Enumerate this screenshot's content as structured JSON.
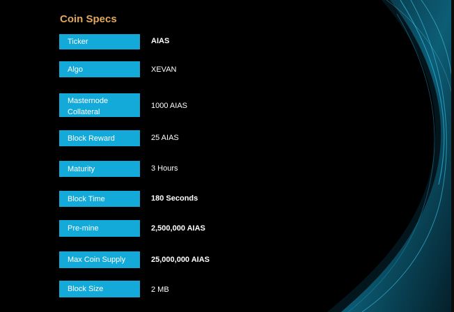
{
  "title": "Coin Specs",
  "specs": [
    {
      "label": "Ticker",
      "value": "AIAS"
    },
    {
      "label": "Algo",
      "value": "XEVAN"
    },
    {
      "label": "Masternode Collateral",
      "value": "1000 AIAS"
    },
    {
      "label": "Block Reward",
      "value": "25 AIAS"
    },
    {
      "label": "Maturity",
      "value": "3 Hours"
    },
    {
      "label": "Block Time",
      "value": "180 Seconds"
    },
    {
      "label": "Pre-mine",
      "value": "2,500,000 AIAS"
    },
    {
      "label": "Max Coin Supply",
      "value": "25,000,000 AIAS"
    },
    {
      "label": "Block Size",
      "value": "2 MB"
    }
  ],
  "colors": {
    "background": "#000000",
    "label_bg": "#13a9d9",
    "title": "#e2a85e",
    "decoration": "#0e6f8c"
  }
}
